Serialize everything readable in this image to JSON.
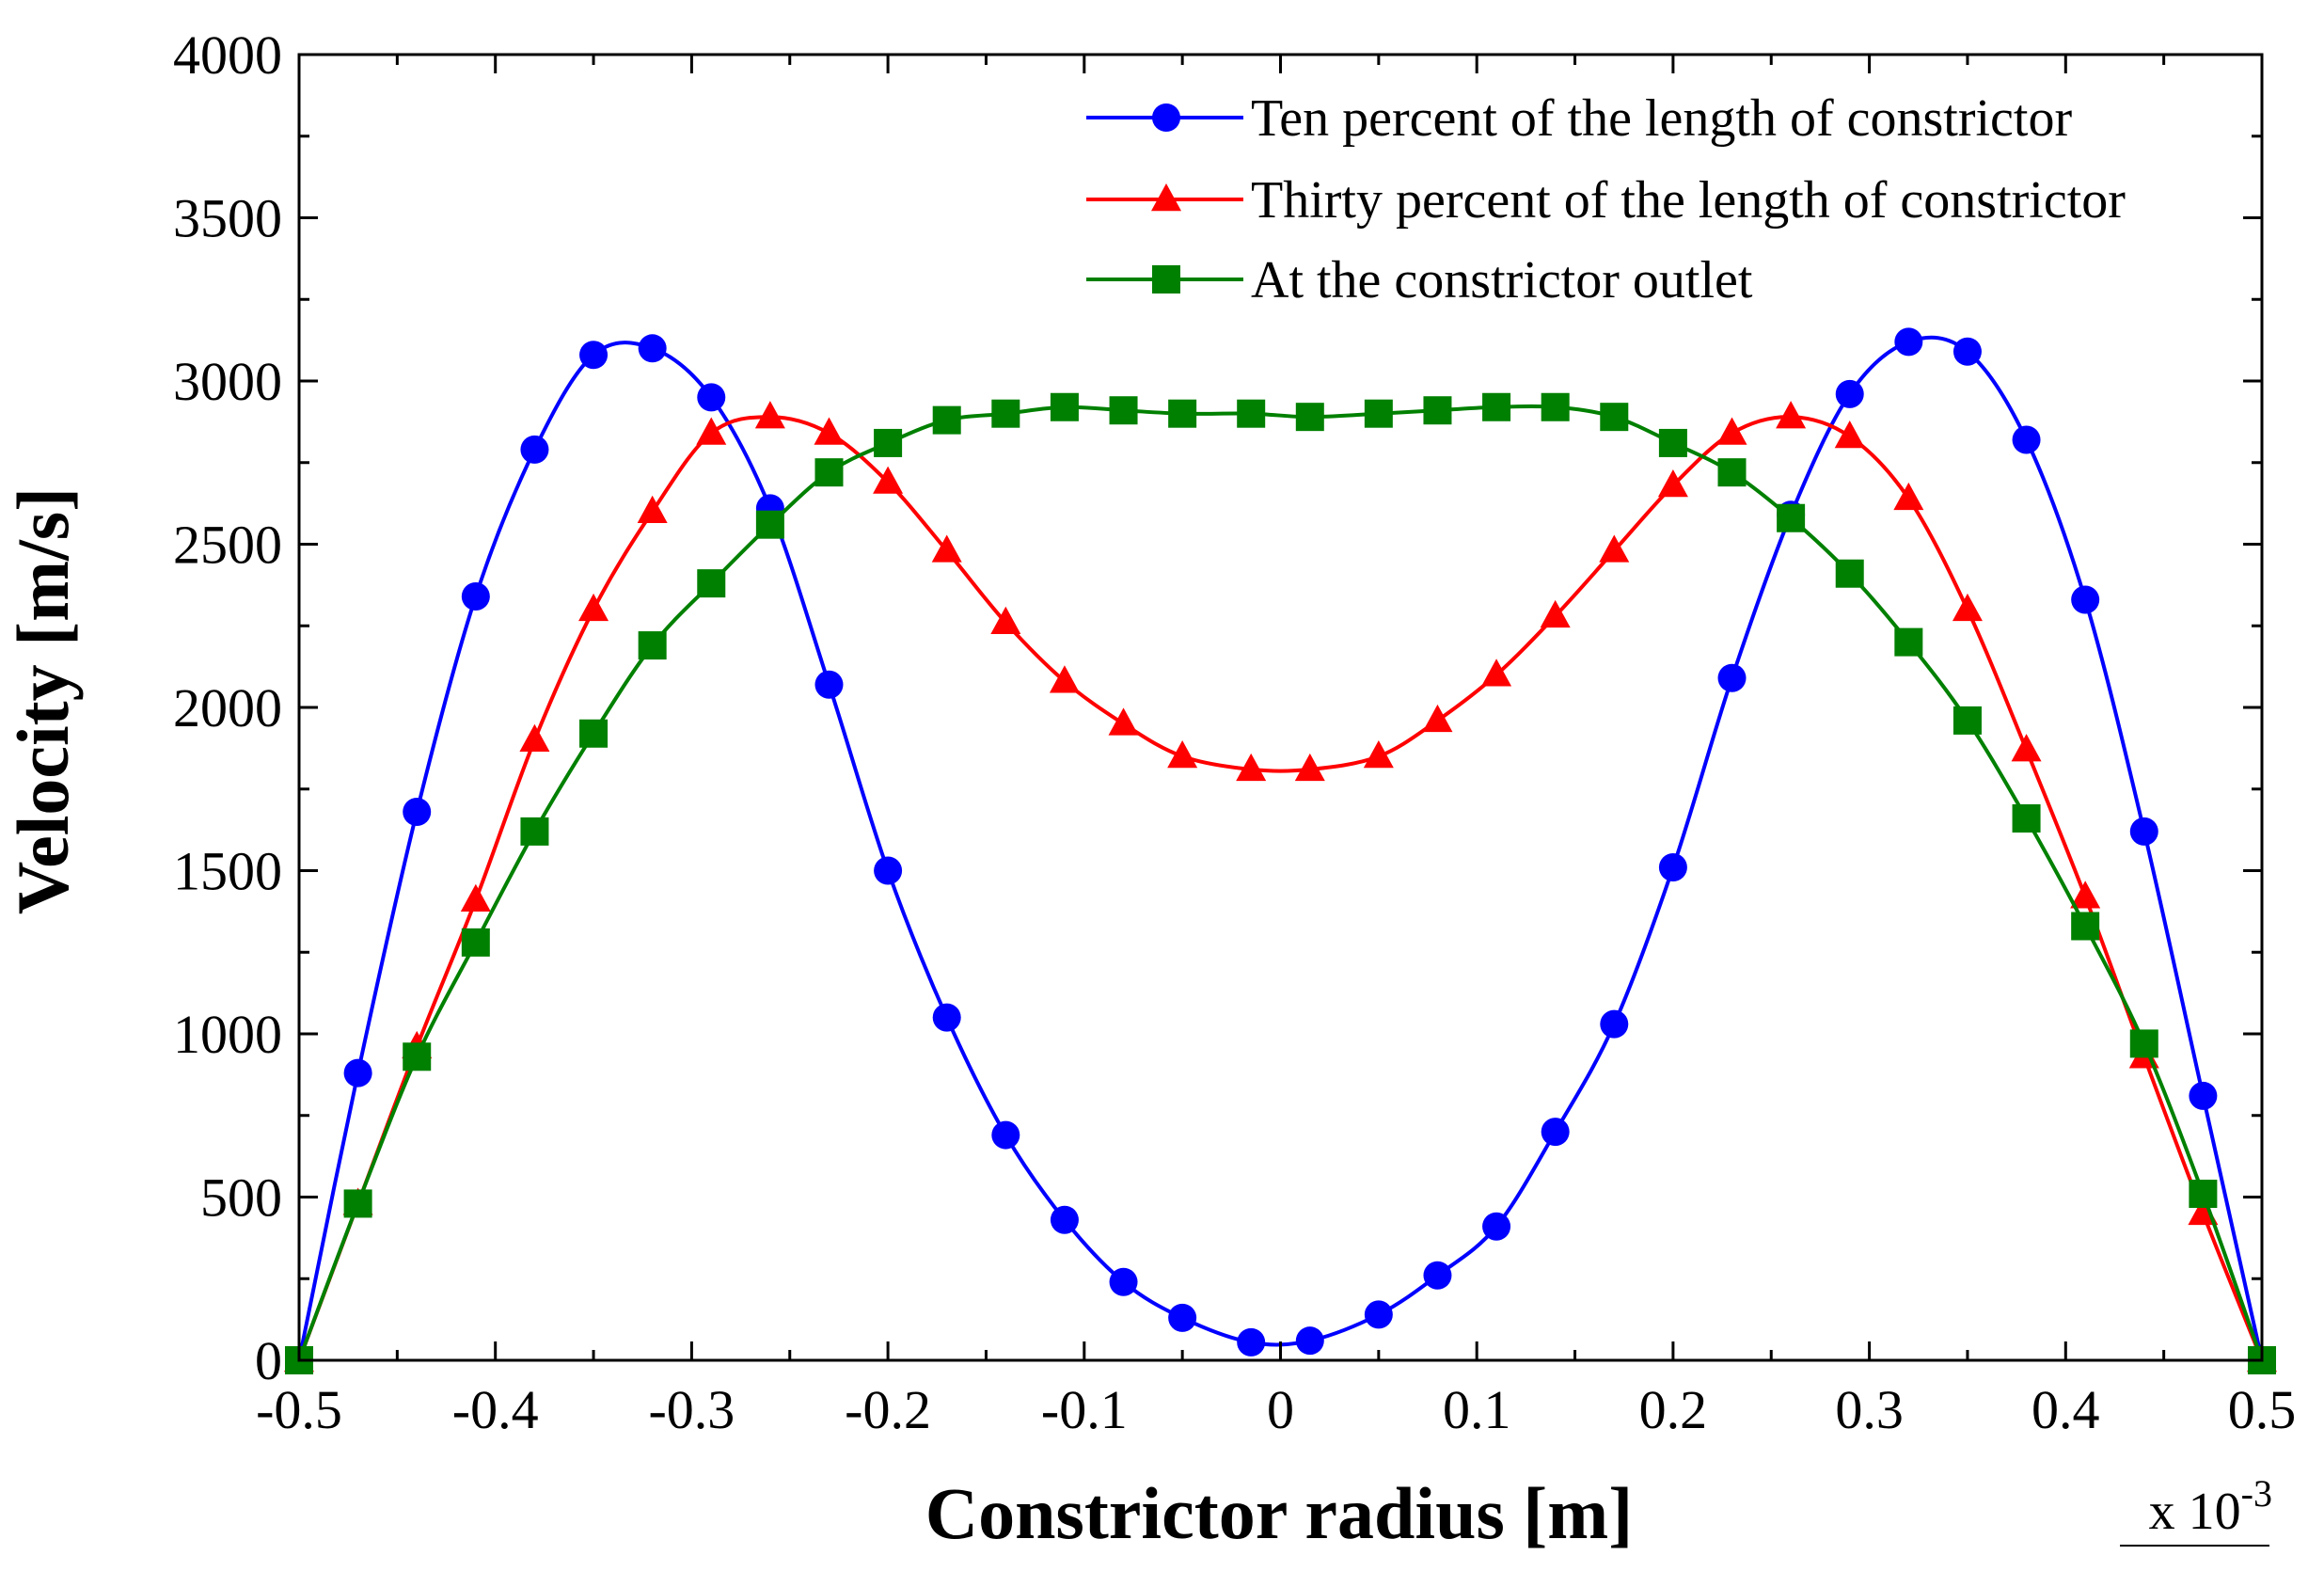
{
  "chart_data": {
    "type": "line",
    "title": "",
    "xlabel": "Constrictor radius [m]",
    "ylabel": "Velocity [m/s]",
    "x_multiplier": {
      "base": "x 10",
      "exponent": "-3"
    },
    "xlim": [
      -0.5,
      0.5
    ],
    "ylim": [
      0,
      4000
    ],
    "xticks": [
      -0.5,
      -0.4,
      -0.3,
      -0.2,
      -0.1,
      0,
      0.1,
      0.2,
      0.3,
      0.4,
      0.5
    ],
    "xtick_labels": [
      "-0.5",
      "-0.4",
      "-0.3",
      "-0.2",
      "-0.1",
      "0",
      "0.1",
      "0.2",
      "0.3",
      "0.4",
      "0.5"
    ],
    "yticks": [
      0,
      500,
      1000,
      1500,
      2000,
      2500,
      3000,
      3500,
      4000
    ],
    "ytick_labels": [
      "0",
      "500",
      "1000",
      "1500",
      "2000",
      "2500",
      "3000",
      "3500",
      "4000"
    ],
    "grid": false,
    "legend_position": "top-right",
    "series": [
      {
        "name": "Ten percent of the length of constrictor",
        "color": "#0000ff",
        "marker": "circle",
        "x": [
          -0.5,
          -0.47,
          -0.44,
          -0.41,
          -0.38,
          -0.35,
          -0.32,
          -0.29,
          -0.26,
          -0.23,
          -0.2,
          -0.17,
          -0.14,
          -0.11,
          -0.08,
          -0.05,
          -0.015,
          0.015,
          0.05,
          0.08,
          0.11,
          0.14,
          0.17,
          0.2,
          0.23,
          0.26,
          0.29,
          0.32,
          0.35,
          0.38,
          0.41,
          0.44,
          0.47,
          0.5
        ],
        "y": [
          0,
          880,
          1680,
          2340,
          2790,
          3080,
          3100,
          2950,
          2610,
          2070,
          1500,
          1050,
          690,
          430,
          240,
          130,
          55,
          60,
          140,
          260,
          410,
          700,
          1030,
          1510,
          2090,
          2590,
          2960,
          3120,
          3090,
          2820,
          2330,
          1620,
          810,
          0
        ]
      },
      {
        "name": "Thirty percent of the length of constrictor",
        "color": "#ff0000",
        "marker": "triangle",
        "x": [
          -0.5,
          -0.47,
          -0.44,
          -0.41,
          -0.38,
          -0.35,
          -0.32,
          -0.29,
          -0.26,
          -0.23,
          -0.2,
          -0.17,
          -0.14,
          -0.11,
          -0.08,
          -0.05,
          -0.015,
          0.015,
          0.05,
          0.08,
          0.11,
          0.14,
          0.17,
          0.2,
          0.23,
          0.26,
          0.29,
          0.32,
          0.35,
          0.38,
          0.41,
          0.44,
          0.47,
          0.5
        ],
        "y": [
          0,
          480,
          960,
          1410,
          1900,
          2300,
          2600,
          2840,
          2890,
          2840,
          2690,
          2480,
          2260,
          2080,
          1950,
          1850,
          1810,
          1810,
          1850,
          1960,
          2100,
          2280,
          2480,
          2680,
          2840,
          2890,
          2830,
          2640,
          2300,
          1870,
          1420,
          930,
          450,
          0
        ]
      },
      {
        "name": "At the constrictor outlet",
        "color": "#008000",
        "marker": "square",
        "x": [
          -0.5,
          -0.47,
          -0.44,
          -0.41,
          -0.38,
          -0.35,
          -0.32,
          -0.29,
          -0.26,
          -0.23,
          -0.2,
          -0.17,
          -0.14,
          -0.11,
          -0.08,
          -0.05,
          -0.015,
          0.015,
          0.05,
          0.08,
          0.11,
          0.14,
          0.17,
          0.2,
          0.23,
          0.26,
          0.29,
          0.32,
          0.35,
          0.38,
          0.41,
          0.44,
          0.47,
          0.5
        ],
        "y": [
          0,
          480,
          930,
          1280,
          1620,
          1920,
          2190,
          2380,
          2560,
          2720,
          2810,
          2880,
          2900,
          2920,
          2910,
          2900,
          2900,
          2890,
          2900,
          2910,
          2920,
          2920,
          2890,
          2810,
          2720,
          2580,
          2410,
          2200,
          1960,
          1660,
          1330,
          970,
          510,
          0
        ]
      }
    ]
  }
}
